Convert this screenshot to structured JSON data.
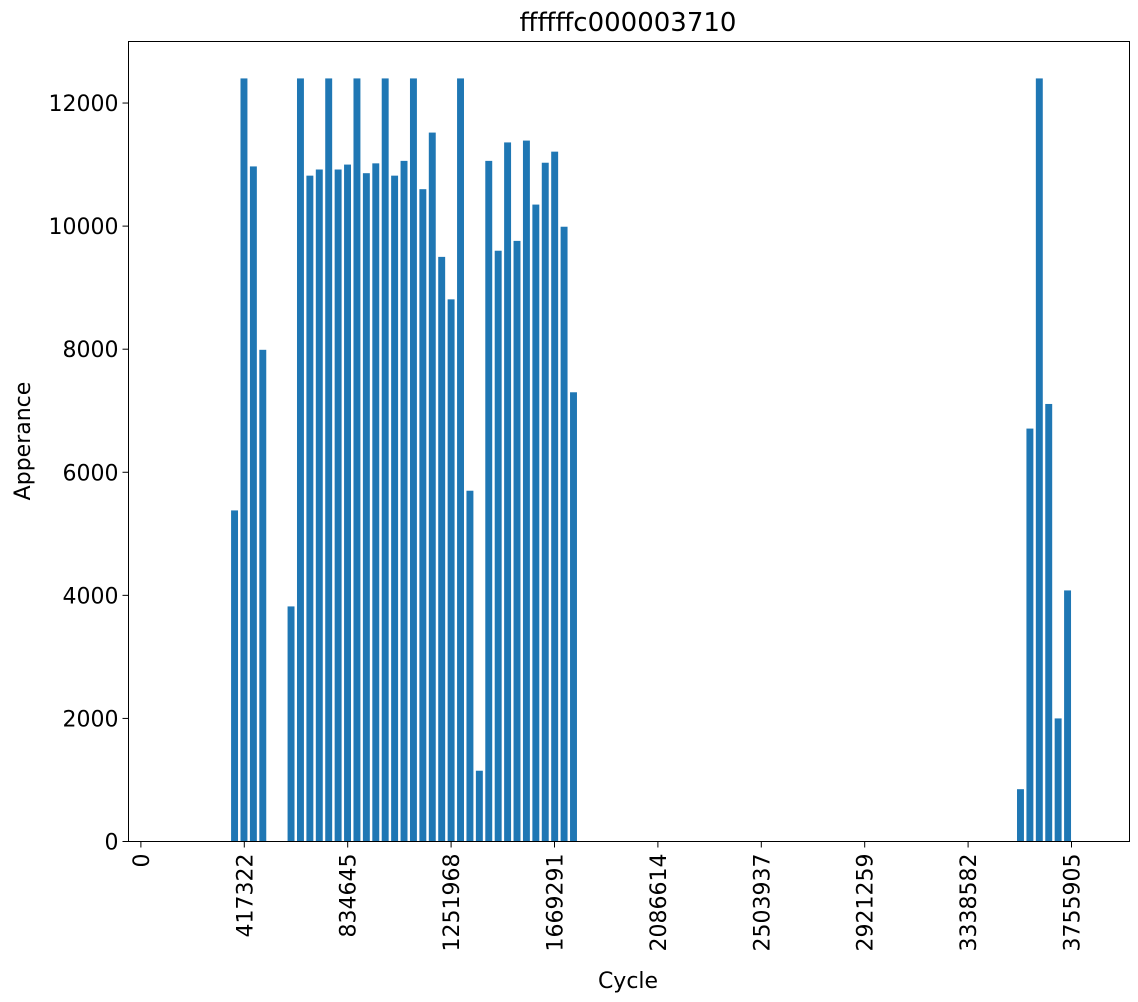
{
  "chart_data": {
    "type": "bar",
    "title": "ffffffc000003710",
    "xlabel": "Cycle",
    "ylabel": "Apperance",
    "xlim": [
      -50000,
      3990000
    ],
    "ylim": [
      0,
      13000
    ],
    "bar_width": 28000,
    "x_ticks": [
      0,
      417322,
      834645,
      1251968,
      1669291,
      2086614,
      2503937,
      2921259,
      3338582,
      3755905
    ],
    "x_tick_labels": [
      "0",
      "417322",
      "834645",
      "1251968",
      "1669291",
      "2086614",
      "2503937",
      "2921259",
      "3338582",
      "3755905"
    ],
    "y_ticks": [
      0,
      2000,
      4000,
      6000,
      8000,
      10000,
      12000
    ],
    "y_tick_labels": [
      "0",
      "2000",
      "4000",
      "6000",
      "8000",
      "10000",
      "12000"
    ],
    "grid": false,
    "x": [
      340000,
      378000,
      416000,
      454000,
      492000,
      530000,
      568000,
      606000,
      644000,
      682000,
      720000,
      758000,
      796000,
      834000,
      872000,
      910000,
      948000,
      986000,
      1024000,
      1062000,
      1100000,
      1138000,
      1176000,
      1214000,
      1252000,
      1290000,
      1328000,
      1366000,
      1404000,
      1442000,
      1480000,
      1518000,
      1556000,
      1594000,
      1632000,
      1670000,
      1708000,
      1746000,
      1784000,
      3475000,
      3550000,
      3588000,
      3626000,
      3664000,
      3702000,
      3740000
    ],
    "values": [
      0,
      5380,
      12400,
      10970,
      7990,
      0,
      0,
      3820,
      12400,
      10820,
      10920,
      12400,
      10920,
      11000,
      12400,
      10860,
      11020,
      12400,
      10820,
      11060,
      12400,
      10600,
      11520,
      9500,
      8810,
      12400,
      5700,
      1150,
      11060,
      9600,
      11360,
      9760,
      11390,
      10350,
      11030,
      11210,
      9990,
      7300,
      0,
      0,
      850,
      6710,
      12400,
      7110,
      2000,
      4080
    ]
  }
}
